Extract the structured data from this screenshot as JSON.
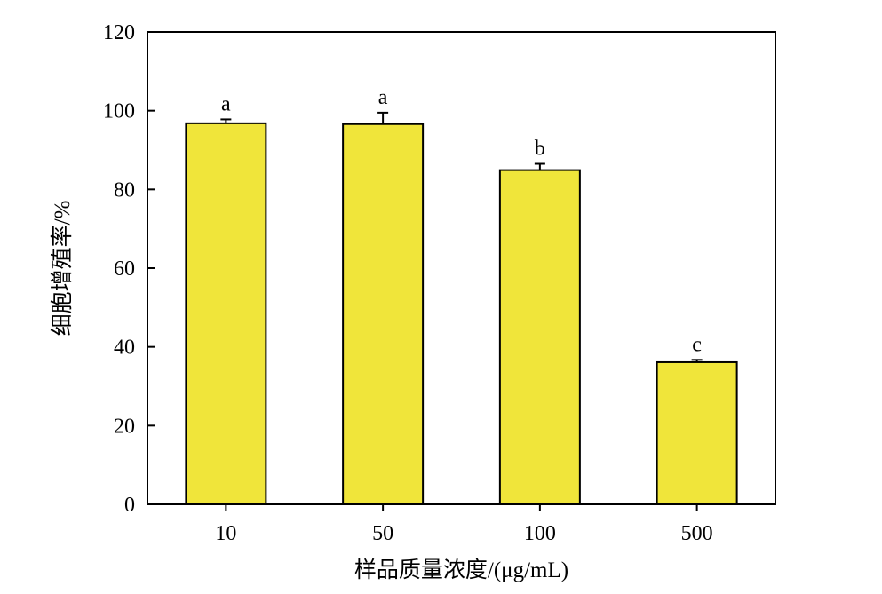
{
  "chart_data": {
    "type": "bar",
    "categories": [
      "10",
      "50",
      "100",
      "500"
    ],
    "values": [
      96.8,
      96.6,
      84.9,
      36.1
    ],
    "error": [
      1.0,
      2.9,
      1.6,
      0.6
    ],
    "significance_labels": [
      "a",
      "a",
      "b",
      "c"
    ],
    "xlabel": "样品质量浓度/(μg/mL)",
    "ylabel": "细胞增殖率/%",
    "ylim": [
      0,
      120
    ],
    "yticks": [
      0,
      20,
      40,
      60,
      80,
      100,
      120
    ],
    "grid": false,
    "bar_color": "#f0e53a",
    "edge_color": "#000000"
  }
}
